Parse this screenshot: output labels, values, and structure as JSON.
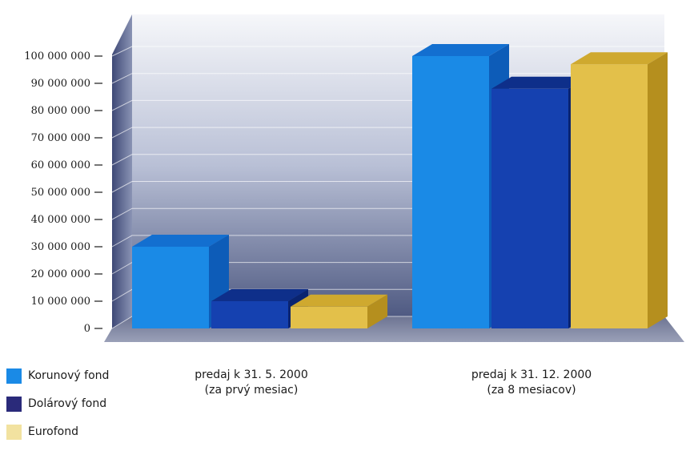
{
  "chart_data": {
    "type": "bar",
    "title": "",
    "xlabel": "",
    "ylabel": "",
    "ylim": [
      0,
      100000000
    ],
    "y_ticks": [
      "0",
      "10 000 000",
      "20 000 000",
      "30 000 000",
      "40 000 000",
      "50 000 000",
      "60 000 000",
      "70 000 000",
      "80 000 000",
      "90 000 000",
      "100 000 000"
    ],
    "categories": [
      [
        "predaj k 31. 5. 2000",
        "(za prvý mesiac)"
      ],
      [
        "predaj k 31. 12. 2000",
        "(za 8 mesiacov)"
      ]
    ],
    "series": [
      {
        "name": "Korunový fond",
        "values": [
          30000000,
          100000000
        ],
        "color": "#1a8ae6",
        "side": "#0d5cb8",
        "top": "#136fd0"
      },
      {
        "name": "Dolárový fond",
        "values": [
          10000000,
          88000000
        ],
        "color": "#1541b0",
        "side": "#0a2470",
        "top": "#0e2f8a"
      },
      {
        "name": "Eurofond",
        "values": [
          8000000,
          97000000
        ],
        "color": "#e3c04a",
        "side": "#b58f1e",
        "top": "#cfa92f"
      }
    ],
    "legend": {
      "position": "bottom-left",
      "swatches": [
        "#1a8ae6",
        "#2a2a7a",
        "#f2e2a0"
      ]
    },
    "grid": true,
    "style": "3d"
  }
}
